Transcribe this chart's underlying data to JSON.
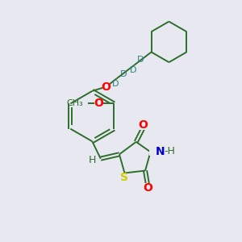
{
  "background_color": "#e8e8f0",
  "fig_size": [
    3.0,
    3.0
  ],
  "dpi": 100,
  "atom_colors": {
    "O": "#ff0000",
    "N": "#0000cc",
    "S": "#cccc00",
    "C": "#2d6e2d",
    "H": "#2d6e2d",
    "D": "#2d8080"
  },
  "bond_color": "#2d6e2d",
  "bond_lw": 1.4
}
